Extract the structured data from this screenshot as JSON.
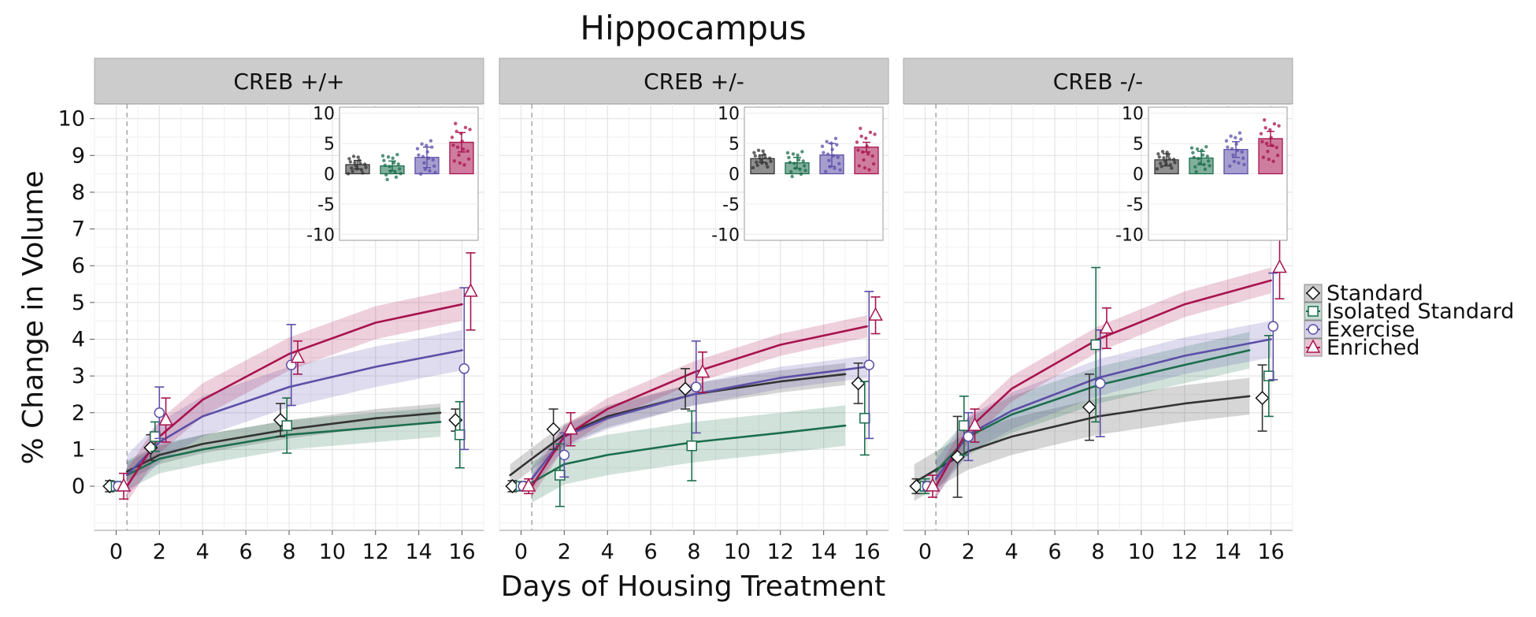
{
  "figure": {
    "title": "Hippocampus",
    "xlabel": "Days of Housing Treatment",
    "ylabel": "% Change in Volume"
  },
  "legend": [
    {
      "name": "Standard",
      "color": "#333333",
      "shape": "diamond"
    },
    {
      "name": "Isolated Standard",
      "color": "#1b6e4c",
      "shape": "square"
    },
    {
      "name": "Exercise",
      "color": "#5c4fa8",
      "shape": "circle"
    },
    {
      "name": "Enriched",
      "color": "#a8134f",
      "shape": "triangle"
    }
  ],
  "chart_data": [
    {
      "type": "line",
      "panel": "CREB +/+",
      "xlim": [
        -1,
        17
      ],
      "ylim": [
        -1.2,
        10.4
      ],
      "xticks": [
        0,
        2,
        4,
        6,
        8,
        10,
        12,
        14,
        16
      ],
      "yticks": [
        0,
        1,
        2,
        3,
        4,
        5,
        6,
        7,
        8,
        9,
        10
      ],
      "grid": true,
      "reference_line_x": 0.5,
      "series": [
        {
          "name": "Standard",
          "fit": [
            [
              0.5,
              0.4
            ],
            [
              2,
              0.85
            ],
            [
              4,
              1.15
            ],
            [
              8,
              1.55
            ],
            [
              12,
              1.85
            ],
            [
              15,
              2.0
            ]
          ],
          "band": 0.25,
          "points": [
            {
              "x": -0.3,
              "y": 0.0,
              "err": 0.15
            },
            {
              "x": 1.6,
              "y": 1.05,
              "err": 0.35
            },
            {
              "x": 7.6,
              "y": 1.8,
              "err": 0.45
            },
            {
              "x": 15.7,
              "y": 1.8,
              "err": 0.3
            }
          ]
        },
        {
          "name": "Isolated Standard",
          "fit": [
            [
              0.5,
              0.3
            ],
            [
              2,
              0.75
            ],
            [
              4,
              1.0
            ],
            [
              8,
              1.4
            ],
            [
              12,
              1.6
            ],
            [
              15,
              1.75
            ]
          ],
          "band": 0.4,
          "points": [
            {
              "x": 0.0,
              "y": 0.0,
              "err": 0.1
            },
            {
              "x": 1.8,
              "y": 1.35,
              "err": 0.4
            },
            {
              "x": 7.9,
              "y": 1.65,
              "err": 0.75
            },
            {
              "x": 15.9,
              "y": 1.4,
              "err": 0.9
            }
          ]
        },
        {
          "name": "Exercise",
          "fit": [
            [
              0.5,
              0.3
            ],
            [
              2,
              1.2
            ],
            [
              4,
              1.9
            ],
            [
              8,
              2.7
            ],
            [
              12,
              3.25
            ],
            [
              16,
              3.7
            ]
          ],
          "band": 0.55,
          "points": [
            {
              "x": 0.1,
              "y": 0.0,
              "err": 0.1
            },
            {
              "x": 2.0,
              "y": 2.0,
              "err": 0.7
            },
            {
              "x": 8.1,
              "y": 3.3,
              "err": 1.1
            },
            {
              "x": 16.1,
              "y": 3.2,
              "err": 2.2
            }
          ]
        },
        {
          "name": "Enriched",
          "fit": [
            [
              0.5,
              0.0
            ],
            [
              2,
              1.35
            ],
            [
              4,
              2.35
            ],
            [
              8,
              3.6
            ],
            [
              12,
              4.45
            ],
            [
              16,
              4.95
            ]
          ],
          "band": 0.45,
          "points": [
            {
              "x": 0.35,
              "y": 0.0,
              "err": 0.35
            },
            {
              "x": 2.3,
              "y": 1.8,
              "err": 0.6
            },
            {
              "x": 8.4,
              "y": 3.5,
              "err": 0.45
            },
            {
              "x": 16.4,
              "y": 5.3,
              "err": 1.05
            }
          ]
        }
      ],
      "inset": {
        "type": "bar",
        "yticks": [
          10,
          5,
          0,
          -5,
          -10
        ],
        "ylim": [
          -11,
          11
        ],
        "values": [
          1.5,
          1.3,
          2.7,
          5.2
        ],
        "errors": [
          0.7,
          0.8,
          1.7,
          1.6
        ]
      }
    },
    {
      "type": "line",
      "panel": "CREB +/-",
      "xlim": [
        -1,
        17
      ],
      "ylim": [
        -1.2,
        10.4
      ],
      "xticks": [
        0,
        2,
        4,
        6,
        8,
        10,
        12,
        14,
        16
      ],
      "yticks": [
        0,
        1,
        2,
        3,
        4,
        5,
        6,
        7,
        8,
        9,
        10
      ],
      "grid": true,
      "reference_line_x": 0.5,
      "series": [
        {
          "name": "Standard",
          "fit": [
            [
              -0.5,
              0.3
            ],
            [
              0.5,
              0.75
            ],
            [
              2,
              1.4
            ],
            [
              4,
              1.9
            ],
            [
              8,
              2.5
            ],
            [
              12,
              2.85
            ],
            [
              15,
              3.05
            ]
          ],
          "band": 0.3,
          "points": [
            {
              "x": -0.4,
              "y": 0.0,
              "err": 0.15
            },
            {
              "x": 1.5,
              "y": 1.55,
              "err": 0.55
            },
            {
              "x": 7.6,
              "y": 2.65,
              "err": 0.55
            },
            {
              "x": 15.6,
              "y": 2.8,
              "err": 0.55
            }
          ]
        },
        {
          "name": "Isolated Standard",
          "fit": [
            [
              0.5,
              0.1
            ],
            [
              2,
              0.6
            ],
            [
              4,
              0.85
            ],
            [
              8,
              1.2
            ],
            [
              12,
              1.45
            ],
            [
              15,
              1.65
            ]
          ],
          "band": 0.55,
          "points": [
            {
              "x": 0.0,
              "y": 0.0,
              "err": 0.1
            },
            {
              "x": 1.8,
              "y": 0.3,
              "err": 0.85
            },
            {
              "x": 7.9,
              "y": 1.1,
              "err": 0.95
            },
            {
              "x": 15.9,
              "y": 1.85,
              "err": 1.0
            }
          ]
        },
        {
          "name": "Exercise",
          "fit": [
            [
              0.5,
              0.2
            ],
            [
              2,
              1.35
            ],
            [
              4,
              1.85
            ],
            [
              8,
              2.5
            ],
            [
              12,
              2.95
            ],
            [
              16,
              3.25
            ]
          ],
          "band": 0.3,
          "points": [
            {
              "x": 0.1,
              "y": 0.0,
              "err": 0.1
            },
            {
              "x": 2.0,
              "y": 0.85,
              "err": 0.6
            },
            {
              "x": 8.1,
              "y": 2.7,
              "err": 1.25
            },
            {
              "x": 16.1,
              "y": 3.3,
              "err": 2.0
            }
          ]
        },
        {
          "name": "Enriched",
          "fit": [
            [
              0.5,
              0.0
            ],
            [
              2,
              1.35
            ],
            [
              4,
              2.1
            ],
            [
              8,
              3.1
            ],
            [
              12,
              3.85
            ],
            [
              16,
              4.35
            ]
          ],
          "band": 0.3,
          "points": [
            {
              "x": 0.35,
              "y": 0.0,
              "err": 0.2
            },
            {
              "x": 2.3,
              "y": 1.55,
              "err": 0.45
            },
            {
              "x": 8.4,
              "y": 3.1,
              "err": 0.55
            },
            {
              "x": 16.4,
              "y": 4.65,
              "err": 0.5
            }
          ]
        }
      ],
      "inset": {
        "type": "bar",
        "yticks": [
          10,
          5,
          0,
          -5,
          -10
        ],
        "ylim": [
          -11,
          11
        ],
        "values": [
          2.5,
          1.8,
          3.1,
          4.4
        ],
        "errors": [
          0.6,
          0.9,
          1.9,
          0.8
        ]
      }
    },
    {
      "type": "line",
      "panel": "CREB -/-",
      "xlim": [
        -1,
        17
      ],
      "ylim": [
        -1.2,
        10.4
      ],
      "xticks": [
        0,
        2,
        4,
        6,
        8,
        10,
        12,
        14,
        16
      ],
      "yticks": [
        0,
        1,
        2,
        3,
        4,
        5,
        6,
        7,
        8,
        9,
        10
      ],
      "grid": true,
      "reference_line_x": 0.5,
      "series": [
        {
          "name": "Standard",
          "fit": [
            [
              -0.5,
              0.1
            ],
            [
              0.5,
              0.45
            ],
            [
              2,
              0.95
            ],
            [
              4,
              1.35
            ],
            [
              8,
              1.9
            ],
            [
              12,
              2.25
            ],
            [
              15,
              2.45
            ]
          ],
          "band": 0.5,
          "points": [
            {
              "x": -0.4,
              "y": 0.0,
              "err": 0.2
            },
            {
              "x": 1.5,
              "y": 0.8,
              "err": 1.1
            },
            {
              "x": 7.6,
              "y": 2.15,
              "err": 0.9
            },
            {
              "x": 15.6,
              "y": 2.4,
              "err": 0.9
            }
          ]
        },
        {
          "name": "Isolated Standard",
          "fit": [
            [
              0.5,
              0.4
            ],
            [
              2,
              1.35
            ],
            [
              4,
              1.95
            ],
            [
              8,
              2.75
            ],
            [
              12,
              3.3
            ],
            [
              15,
              3.7
            ]
          ],
          "band": 0.5,
          "points": [
            {
              "x": 0.0,
              "y": 0.0,
              "err": 0.2
            },
            {
              "x": 1.8,
              "y": 1.65,
              "err": 0.8
            },
            {
              "x": 7.9,
              "y": 3.85,
              "err": 2.1
            },
            {
              "x": 15.9,
              "y": 3.0,
              "err": 1.1
            }
          ]
        },
        {
          "name": "Exercise",
          "fit": [
            [
              0.5,
              0.2
            ],
            [
              2,
              1.4
            ],
            [
              4,
              2.05
            ],
            [
              8,
              2.95
            ],
            [
              12,
              3.55
            ],
            [
              16,
              4.0
            ]
          ],
          "band": 0.5,
          "points": [
            {
              "x": 0.1,
              "y": 0.0,
              "err": 0.1
            },
            {
              "x": 2.0,
              "y": 1.35,
              "err": 0.65
            },
            {
              "x": 8.1,
              "y": 2.8,
              "err": 1.45
            },
            {
              "x": 16.1,
              "y": 4.35,
              "err": 1.45
            }
          ]
        },
        {
          "name": "Enriched",
          "fit": [
            [
              0.5,
              0.0
            ],
            [
              2,
              1.55
            ],
            [
              4,
              2.65
            ],
            [
              8,
              4.0
            ],
            [
              12,
              4.95
            ],
            [
              16,
              5.6
            ]
          ],
          "band": 0.35,
          "points": [
            {
              "x": 0.35,
              "y": 0.0,
              "err": 0.3
            },
            {
              "x": 2.3,
              "y": 1.65,
              "err": 0.45
            },
            {
              "x": 8.4,
              "y": 4.3,
              "err": 0.55
            },
            {
              "x": 16.4,
              "y": 5.95,
              "err": 0.85
            }
          ]
        }
      ],
      "inset": {
        "type": "bar",
        "yticks": [
          10,
          5,
          0,
          -5,
          -10
        ],
        "ylim": [
          -11,
          11
        ],
        "values": [
          2.3,
          2.6,
          4.0,
          5.8
        ],
        "errors": [
          1.0,
          1.1,
          1.3,
          1.2
        ]
      }
    }
  ]
}
